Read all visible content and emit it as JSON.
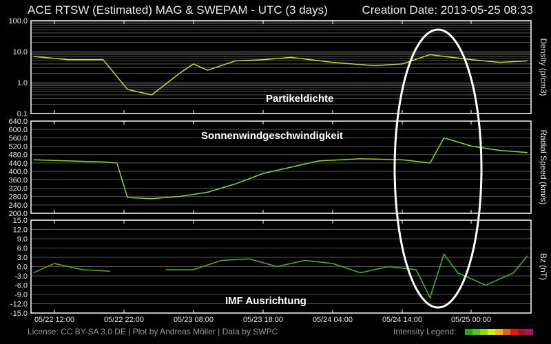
{
  "header": {
    "title": "ACE RTSW (Estimated) MAG & SWEPAM - UTC (3 days)",
    "creation_date": "Creation Date: 2013-05-25 08:33"
  },
  "footer": {
    "license": "License: CC BY-SA 3.0 DE | Plot by Andreas Möller | Data by SWPC",
    "legend_label": "Intensity Legend:",
    "legend_colors": [
      "#22aa11",
      "#55c411",
      "#88dd11",
      "#ccee11",
      "#f4b411",
      "#dd6611",
      "#ee1111",
      "#aa1122",
      "#aa1166"
    ]
  },
  "annotations": {
    "density": "Partikeldichte",
    "speed": "Sonnenwindgeschwindigkeit",
    "bz": "IMF Ausrichtung"
  },
  "chart_data": [
    {
      "type": "line",
      "title": "Density",
      "ylabel": "Density (p/cm3)",
      "yscale": "log",
      "ylim": [
        0.1,
        100.0
      ],
      "y_ticks": [
        "100.0",
        "10.0",
        "1.0",
        "0.1"
      ],
      "x_ticks": [
        "05/22 12:00",
        "05/22 22:00",
        "05/23 08:00",
        "05/23 18:00",
        "05/24 04:00",
        "05/24 14:00",
        "05/25 00:00"
      ],
      "x": [
        "05/22 09:00",
        "05/22 14:00",
        "05/22 19:00",
        "05/22 22:30",
        "05/23 02:00",
        "05/23 06:00",
        "05/23 08:00",
        "05/23 10:00",
        "05/23 14:00",
        "05/23 18:00",
        "05/23 22:00",
        "05/24 04:00",
        "05/24 10:00",
        "05/24 14:00",
        "05/24 18:00",
        "05/24 20:00",
        "05/25 00:00",
        "05/25 04:00",
        "05/25 08:00"
      ],
      "values": [
        7.0,
        5.5,
        5.5,
        0.6,
        0.4,
        2.0,
        4.0,
        2.5,
        5.0,
        5.5,
        6.5,
        4.5,
        3.5,
        4.0,
        8.0,
        7.0,
        5.5,
        4.5,
        5.0
      ],
      "annotation": "Partikeldichte"
    },
    {
      "type": "line",
      "title": "Radial Speed",
      "ylabel": "Radial Speed (km/s)",
      "ylim": [
        200.0,
        640.0
      ],
      "y_ticks": [
        "640.0",
        "600.0",
        "560.0",
        "520.0",
        "480.0",
        "440.0",
        "400.0",
        "360.0",
        "320.0",
        "280.0",
        "240.0",
        "200.0"
      ],
      "x_ticks": [
        "05/22 12:00",
        "05/22 22:00",
        "05/23 08:00",
        "05/23 18:00",
        "05/24 04:00",
        "05/24 14:00",
        "05/25 00:00"
      ],
      "x": [
        "05/22 09:00",
        "05/22 14:00",
        "05/22 19:00",
        "05/22 21:00",
        "05/22 22:30",
        "05/23 02:00",
        "05/23 06:00",
        "05/23 10:00",
        "05/23 14:00",
        "05/23 18:00",
        "05/23 22:00",
        "05/24 02:00",
        "05/24 08:00",
        "05/24 14:00",
        "05/24 18:00",
        "05/24 20:00",
        "05/25 00:00",
        "05/25 04:00",
        "05/25 08:00"
      ],
      "values": [
        455,
        450,
        445,
        440,
        275,
        270,
        280,
        300,
        340,
        390,
        420,
        450,
        460,
        455,
        440,
        560,
        520,
        500,
        490
      ],
      "annotation": "Sonnenwindgeschwindigkeit"
    },
    {
      "type": "line",
      "title": "Bz",
      "ylabel": "Bz (nT)",
      "ylim": [
        -15.0,
        15.0
      ],
      "y_ticks": [
        "15.0",
        "12.0",
        "9.0",
        "6.0",
        "3.0",
        "0.0",
        "-3.0",
        "-6.0",
        "-9.0",
        "-12.0",
        "-15.0"
      ],
      "x_ticks": [
        "05/22 12:00",
        "05/22 22:00",
        "05/23 08:00",
        "05/23 18:00",
        "05/24 04:00",
        "05/24 14:00",
        "05/25 00:00"
      ],
      "x": [
        "05/22 09:00",
        "05/22 12:00",
        "05/22 16:00",
        "05/22 20:00",
        "05/23 00:00",
        "05/23 04:00",
        "05/23 08:00",
        "05/23 12:00",
        "05/23 16:00",
        "05/23 20:00",
        "05/24 00:00",
        "05/24 04:00",
        "05/24 08:00",
        "05/24 12:00",
        "05/24 16:00",
        "05/24 18:00",
        "05/24 20:00",
        "05/24 22:00",
        "05/25 02:00",
        "05/25 06:00",
        "05/25 08:00"
      ],
      "values": [
        -2.0,
        1.0,
        -1.0,
        -1.5,
        null,
        -1.0,
        -1.0,
        2.0,
        2.5,
        0.0,
        2.0,
        1.0,
        -2.0,
        0.0,
        -1.0,
        -10.0,
        4.0,
        -2.0,
        -6.0,
        -2.0,
        3.5
      ],
      "annotation": "IMF Ausrichtung"
    }
  ]
}
